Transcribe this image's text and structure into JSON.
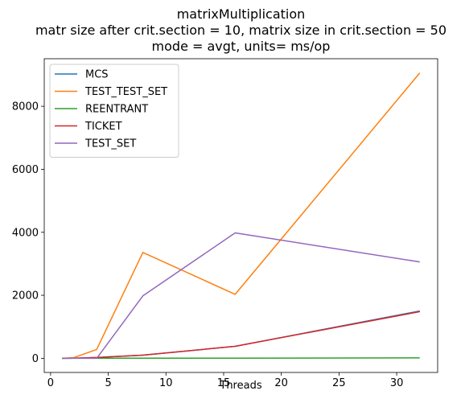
{
  "chart_data": {
    "type": "line",
    "title": [
      "matrixMultiplication",
      "matr size after crit.section = 10, matrix size in crit.section = 50",
      "mode = avgt, units= ms/op"
    ],
    "xlabel": "Threads",
    "ylabel": "",
    "x": [
      1,
      2,
      4,
      8,
      16,
      32
    ],
    "xlim": [
      -0.55,
      33.55
    ],
    "ylim": [
      -450,
      9510
    ],
    "xticks": [
      0,
      5,
      10,
      15,
      20,
      25,
      30
    ],
    "yticks": [
      0,
      2000,
      4000,
      6000,
      8000
    ],
    "grid": false,
    "legend": "top-left",
    "series": [
      {
        "name": "MCS",
        "color": "#1f77b4",
        "values": [
          0,
          5,
          25,
          100,
          380,
          1500
        ]
      },
      {
        "name": "TEST_TEST_SET",
        "color": "#ff7f0e",
        "values": [
          0,
          20,
          280,
          3360,
          2030,
          9060
        ]
      },
      {
        "name": "REENTRANT",
        "color": "#2ca02c",
        "values": [
          0,
          2,
          4,
          4,
          5,
          12
        ]
      },
      {
        "name": "TICKET",
        "color": "#d62728",
        "values": [
          0,
          5,
          25,
          100,
          380,
          1480
        ]
      },
      {
        "name": "TEST_SET",
        "color": "#9467bd",
        "values": [
          0,
          0,
          0,
          1980,
          3980,
          3060
        ]
      }
    ]
  }
}
